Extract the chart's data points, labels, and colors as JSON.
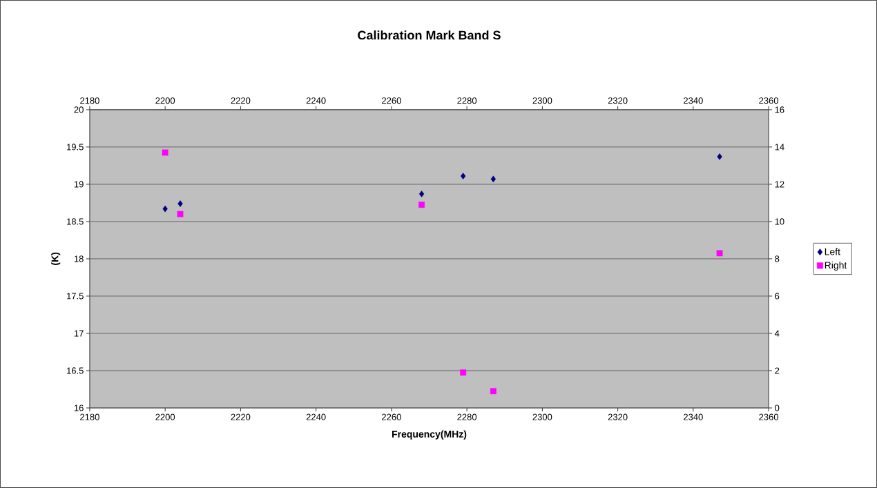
{
  "chart_data": {
    "type": "scatter",
    "title": "Calibration Mark Band S",
    "xlabel": "Frequency(MHz)",
    "ylabel": "(K)",
    "x": [
      2200,
      2204,
      2268,
      2279,
      2287,
      2347
    ],
    "series": [
      {
        "name": "Left",
        "color": "#000080",
        "marker": "diamond",
        "values": [
          18.67,
          18.74,
          18.87,
          19.11,
          19.07,
          19.37
        ]
      },
      {
        "name": "Right",
        "color": "#ff00ff",
        "marker": "square",
        "axis": "y2",
        "values": [
          13.7,
          10.4,
          10.9,
          1.9,
          0.9,
          8.3
        ]
      }
    ],
    "xlim": [
      2180,
      2360
    ],
    "xticks": [
      2180,
      2200,
      2220,
      2240,
      2260,
      2280,
      2300,
      2320,
      2340,
      2360
    ],
    "x2lim": [
      2180,
      2360
    ],
    "x2ticks": [
      2180,
      2200,
      2220,
      2240,
      2260,
      2280,
      2300,
      2320,
      2340,
      2360
    ],
    "ylim": [
      16,
      20
    ],
    "yticks": [
      16,
      16.5,
      17,
      17.5,
      18,
      18.5,
      19,
      19.5,
      20
    ],
    "y2lim": [
      0,
      16
    ],
    "y2ticks": [
      0,
      2,
      4,
      6,
      8,
      10,
      12,
      14,
      16
    ],
    "grid": "y",
    "legend": "right"
  }
}
